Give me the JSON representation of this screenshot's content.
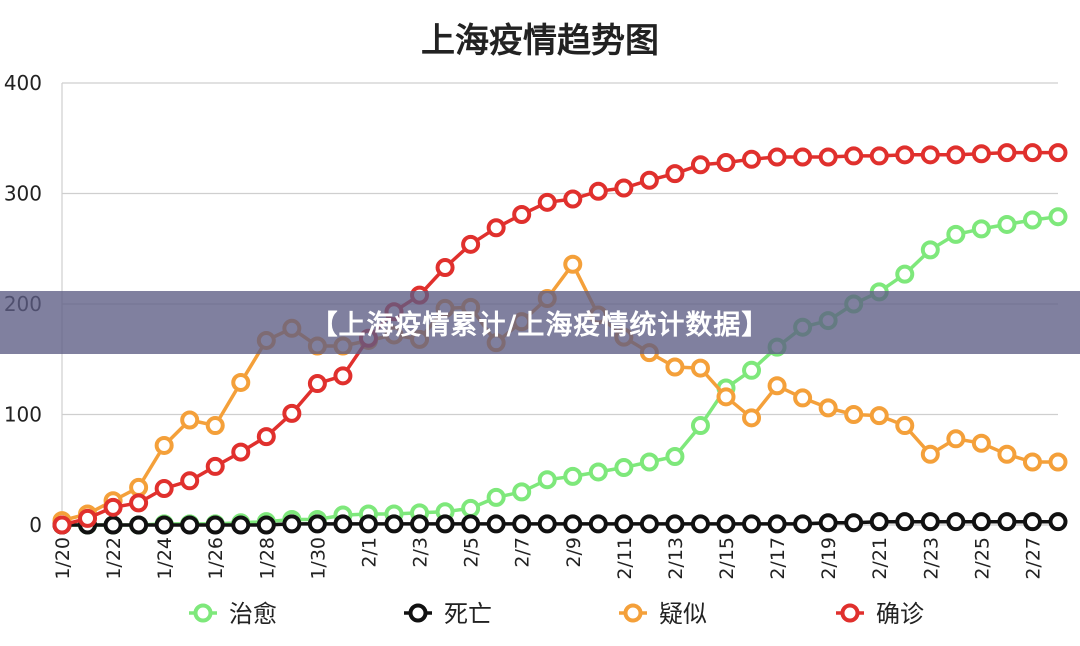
{
  "banner": {
    "text": "【上海疫情累计/上海疫情统计数据】"
  },
  "chart_data": {
    "type": "line",
    "title": "上海疫情趋势图",
    "xlabel": "",
    "ylabel": "",
    "ylim": [
      0,
      400
    ],
    "yticks": [
      "0",
      "100",
      "200",
      "300",
      "400"
    ],
    "grid": true,
    "legend_position": "bottom",
    "categories": [
      "1/20",
      "1/21",
      "1/22",
      "1/23",
      "1/24",
      "1/25",
      "1/26",
      "1/27",
      "1/28",
      "1/29",
      "1/30",
      "1/31",
      "2/1",
      "2/2",
      "2/3",
      "2/4",
      "2/5",
      "2/6",
      "2/7",
      "2/8",
      "2/9",
      "2/10",
      "2/11",
      "2/12",
      "2/13",
      "2/14",
      "2/15",
      "2/16",
      "2/17",
      "2/18",
      "2/19",
      "2/20",
      "2/21",
      "2/22",
      "2/23",
      "2/24",
      "2/25",
      "2/26",
      "2/27",
      "2/28"
    ],
    "x_tick_labels": [
      "1/20",
      "1/22",
      "1/24",
      "1/26",
      "1/28",
      "1/30",
      "2/1",
      "2/3",
      "2/5",
      "2/7",
      "2/9",
      "2/11",
      "2/13",
      "2/15",
      "2/17",
      "2/19",
      "2/21",
      "2/23",
      "2/25",
      "2/27"
    ],
    "series": [
      {
        "name": "治愈",
        "color": "#7ee87b",
        "values": [
          0,
          0,
          0,
          0,
          1,
          1,
          1,
          2,
          3,
          5,
          5,
          9,
          10,
          10,
          11,
          12,
          15,
          25,
          30,
          41,
          44,
          48,
          52,
          57,
          62,
          90,
          124,
          140,
          161,
          179,
          185,
          200,
          211,
          227,
          249,
          263,
          268,
          272,
          276,
          279
        ]
      },
      {
        "name": "死亡",
        "color": "#111111",
        "values": [
          0,
          0,
          0,
          0,
          0,
          0,
          0,
          0,
          0,
          1,
          1,
          1,
          1,
          1,
          1,
          1,
          1,
          1,
          1,
          1,
          1,
          1,
          1,
          1,
          1,
          1,
          1,
          1,
          1,
          1,
          2,
          2,
          3,
          3,
          3,
          3,
          3,
          3,
          3,
          3
        ]
      },
      {
        "name": "疑似",
        "color": "#f4a03a",
        "values": [
          4,
          10,
          22,
          34,
          72,
          95,
          90,
          129,
          167,
          178,
          162,
          162,
          167,
          172,
          168,
          196,
          197,
          165,
          184,
          205,
          236,
          190,
          170,
          156,
          143,
          142,
          116,
          97,
          126,
          115,
          106,
          100,
          99,
          90,
          64,
          78,
          74,
          64,
          57,
          57
        ]
      },
      {
        "name": "确诊",
        "color": "#e0302d",
        "values": [
          0,
          6,
          16,
          20,
          33,
          40,
          53,
          66,
          80,
          101,
          128,
          135,
          169,
          193,
          208,
          233,
          254,
          269,
          281,
          292,
          295,
          302,
          305,
          312,
          318,
          326,
          328,
          331,
          333,
          333,
          333,
          334,
          334,
          335,
          335,
          335,
          336,
          337,
          337,
          337
        ]
      }
    ]
  }
}
